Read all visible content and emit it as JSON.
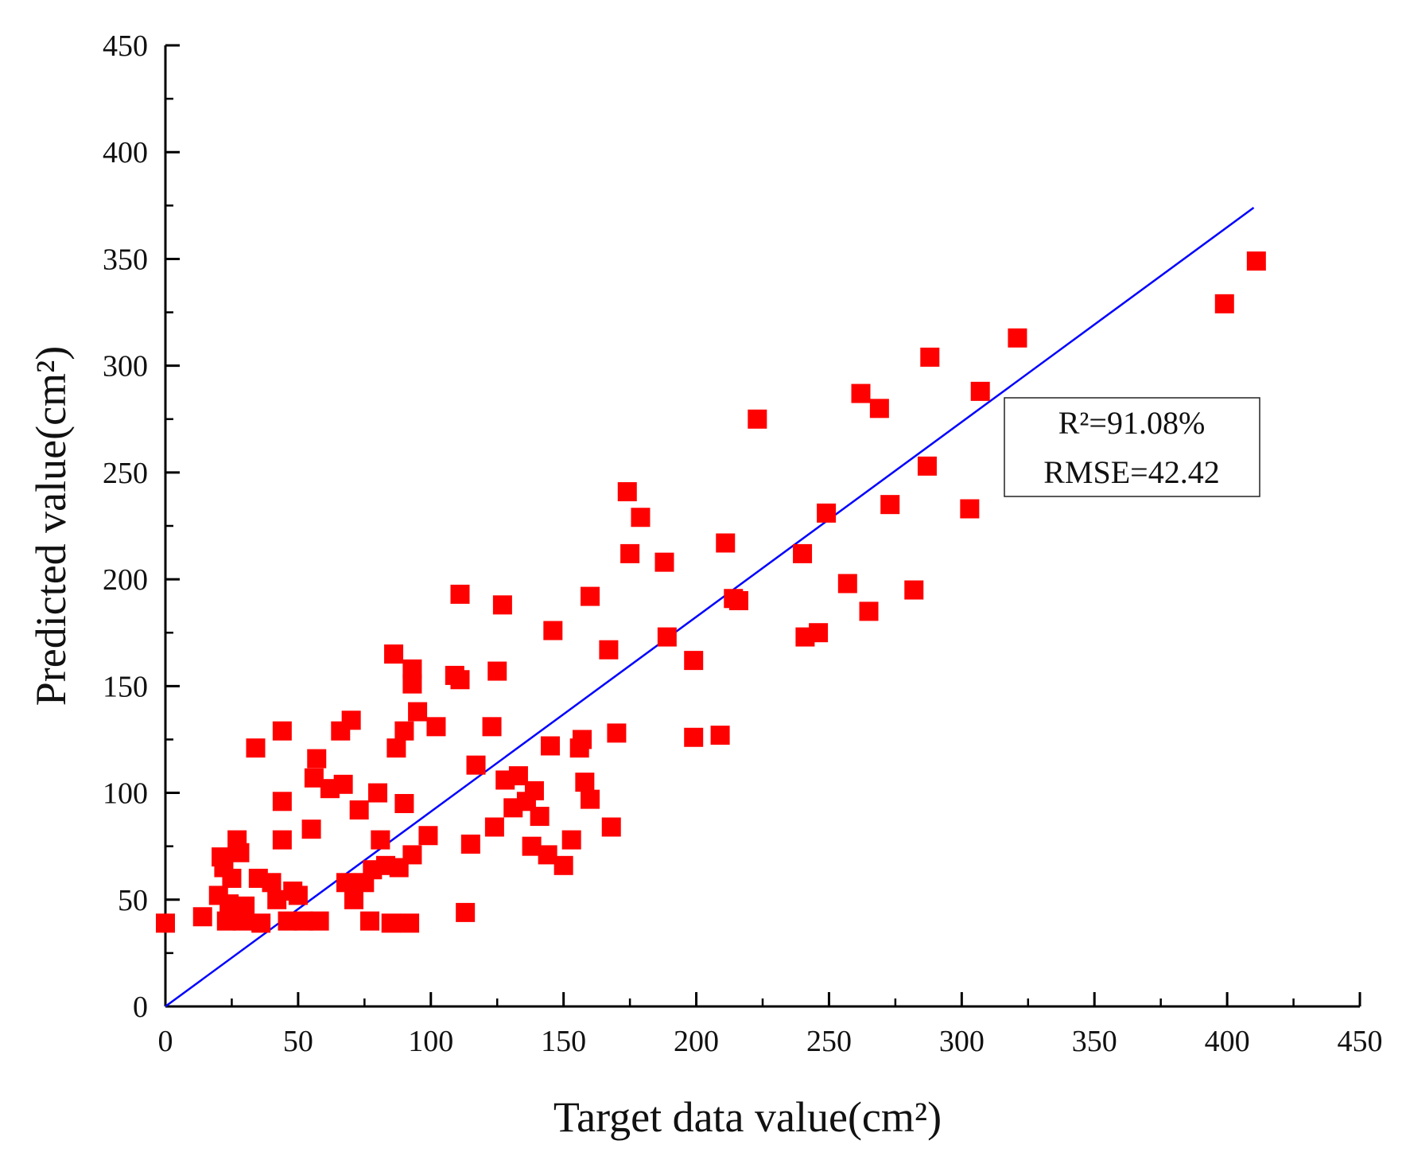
{
  "chart_data": {
    "type": "scatter",
    "title": "",
    "xlabel": "Target data value(cm²)",
    "ylabel": "Predicted value(cm²)",
    "xlim": [
      0,
      450
    ],
    "ylim": [
      0,
      450
    ],
    "x_ticks": [
      0,
      50,
      100,
      150,
      200,
      250,
      300,
      350,
      400,
      450
    ],
    "y_ticks": [
      0,
      50,
      100,
      150,
      200,
      250,
      300,
      350,
      400,
      450
    ],
    "grid": false,
    "marker_color": "#ff0000",
    "line_color": "#0000ff",
    "fit_line": {
      "x": [
        0,
        410
      ],
      "y": [
        0,
        374
      ]
    },
    "annotation": {
      "r2": "R²=91.08%",
      "rmse": "RMSE=42.42",
      "placement": "right-middle"
    },
    "points": [
      [
        0,
        39
      ],
      [
        14,
        42
      ],
      [
        20,
        52
      ],
      [
        21,
        70
      ],
      [
        22,
        65
      ],
      [
        23,
        40
      ],
      [
        24,
        48
      ],
      [
        25,
        60
      ],
      [
        26,
        44
      ],
      [
        27,
        78
      ],
      [
        28,
        72
      ],
      [
        29,
        40
      ],
      [
        30,
        47
      ],
      [
        34,
        121
      ],
      [
        35,
        60
      ],
      [
        36,
        39
      ],
      [
        40,
        58
      ],
      [
        42,
        50
      ],
      [
        44,
        129
      ],
      [
        44,
        96
      ],
      [
        44,
        78
      ],
      [
        46,
        40
      ],
      [
        48,
        54
      ],
      [
        50,
        52
      ],
      [
        52,
        40
      ],
      [
        55,
        83
      ],
      [
        56,
        107
      ],
      [
        57,
        116
      ],
      [
        58,
        40
      ],
      [
        62,
        102
      ],
      [
        66,
        129
      ],
      [
        67,
        104
      ],
      [
        68,
        58
      ],
      [
        70,
        134
      ],
      [
        71,
        50
      ],
      [
        73,
        92
      ],
      [
        75,
        58
      ],
      [
        77,
        40
      ],
      [
        78,
        64
      ],
      [
        80,
        100
      ],
      [
        81,
        78
      ],
      [
        83,
        66
      ],
      [
        85,
        39
      ],
      [
        86,
        165
      ],
      [
        87,
        121
      ],
      [
        88,
        65
      ],
      [
        90,
        129
      ],
      [
        90,
        95
      ],
      [
        92,
        39
      ],
      [
        93,
        158
      ],
      [
        93,
        151
      ],
      [
        95,
        138
      ],
      [
        93,
        71
      ],
      [
        99,
        80
      ],
      [
        102,
        131
      ],
      [
        109,
        155
      ],
      [
        111,
        153
      ],
      [
        111,
        193
      ],
      [
        113,
        44
      ],
      [
        115,
        76
      ],
      [
        117,
        113
      ],
      [
        123,
        131
      ],
      [
        124,
        84
      ],
      [
        125,
        157
      ],
      [
        127,
        188
      ],
      [
        128,
        106
      ],
      [
        131,
        93
      ],
      [
        133,
        108
      ],
      [
        136,
        96
      ],
      [
        138,
        75
      ],
      [
        139,
        101
      ],
      [
        141,
        89
      ],
      [
        144,
        71
      ],
      [
        145,
        122
      ],
      [
        146,
        176
      ],
      [
        150,
        66
      ],
      [
        153,
        78
      ],
      [
        156,
        121
      ],
      [
        157,
        125
      ],
      [
        158,
        105
      ],
      [
        160,
        97
      ],
      [
        160,
        192
      ],
      [
        167,
        167
      ],
      [
        168,
        84
      ],
      [
        170,
        128
      ],
      [
        174,
        241
      ],
      [
        175,
        212
      ],
      [
        179,
        229
      ],
      [
        188,
        208
      ],
      [
        189,
        173
      ],
      [
        199,
        162
      ],
      [
        199,
        126
      ],
      [
        209,
        127
      ],
      [
        211,
        217
      ],
      [
        214,
        191
      ],
      [
        216,
        190
      ],
      [
        223,
        275
      ],
      [
        240,
        212
      ],
      [
        241,
        173
      ],
      [
        246,
        175
      ],
      [
        249,
        231
      ],
      [
        257,
        198
      ],
      [
        262,
        287
      ],
      [
        265,
        185
      ],
      [
        269,
        280
      ],
      [
        273,
        235
      ],
      [
        282,
        195
      ],
      [
        287,
        253
      ],
      [
        288,
        304
      ],
      [
        303,
        233
      ],
      [
        307,
        288
      ],
      [
        321,
        313
      ],
      [
        399,
        329
      ],
      [
        411,
        349
      ]
    ]
  }
}
